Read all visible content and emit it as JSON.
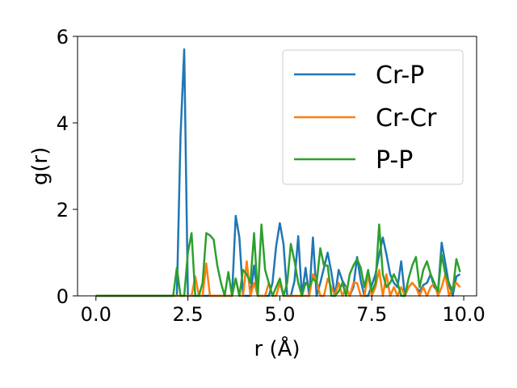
{
  "chart_data": {
    "type": "line",
    "xlabel": "r (Å)",
    "ylabel": "g(r)",
    "xlim": [
      -0.5,
      10.35
    ],
    "ylim": [
      0,
      6
    ],
    "xticks": [
      0.0,
      2.5,
      5.0,
      7.5,
      10.0
    ],
    "xtick_labels": [
      "0.0",
      "2.5",
      "5.0",
      "7.5",
      "10.0"
    ],
    "yticks": [
      0,
      2,
      4,
      6
    ],
    "ytick_labels": [
      "0",
      "2",
      "4",
      "6"
    ],
    "grid": false,
    "legend_position": "upper right",
    "series": [
      {
        "name": "Cr-P",
        "color": "#1f77b4",
        "points": [
          [
            0.0,
            0
          ],
          [
            2.2,
            0
          ],
          [
            2.3,
            3.7
          ],
          [
            2.4,
            5.7
          ],
          [
            2.5,
            0
          ],
          [
            2.6,
            0
          ],
          [
            2.7,
            0
          ],
          [
            2.8,
            0
          ],
          [
            2.9,
            0
          ],
          [
            3.0,
            0
          ],
          [
            3.1,
            0
          ],
          [
            3.2,
            0
          ],
          [
            3.3,
            0
          ],
          [
            3.4,
            0
          ],
          [
            3.5,
            0
          ],
          [
            3.6,
            0
          ],
          [
            3.7,
            0
          ],
          [
            3.8,
            1.85
          ],
          [
            3.9,
            1.35
          ],
          [
            4.0,
            0
          ],
          [
            4.1,
            0
          ],
          [
            4.2,
            0
          ],
          [
            4.3,
            0.7
          ],
          [
            4.4,
            0
          ],
          [
            4.5,
            0
          ],
          [
            4.6,
            0
          ],
          [
            4.7,
            0
          ],
          [
            4.8,
            0.3
          ],
          [
            4.9,
            1.15
          ],
          [
            5.0,
            1.68
          ],
          [
            5.1,
            1.2
          ],
          [
            5.2,
            0
          ],
          [
            5.3,
            0
          ],
          [
            5.4,
            0.35
          ],
          [
            5.5,
            1.38
          ],
          [
            5.6,
            0
          ],
          [
            5.7,
            0.65
          ],
          [
            5.8,
            0
          ],
          [
            5.9,
            1.35
          ],
          [
            6.0,
            0
          ],
          [
            6.1,
            0.3
          ],
          [
            6.2,
            0.65
          ],
          [
            6.3,
            1.0
          ],
          [
            6.4,
            0.55
          ],
          [
            6.5,
            0
          ],
          [
            6.6,
            0.6
          ],
          [
            6.7,
            0.35
          ],
          [
            6.8,
            0.2
          ],
          [
            6.9,
            0
          ],
          [
            7.0,
            0.2
          ],
          [
            7.1,
            0.9
          ],
          [
            7.2,
            0.35
          ],
          [
            7.3,
            0
          ],
          [
            7.4,
            0
          ],
          [
            7.5,
            0.25
          ],
          [
            7.6,
            0.5
          ],
          [
            7.7,
            0.95
          ],
          [
            7.8,
            1.35
          ],
          [
            7.9,
            0.95
          ],
          [
            8.0,
            0.5
          ],
          [
            8.1,
            0.3
          ],
          [
            8.2,
            0.2
          ],
          [
            8.3,
            0.8
          ],
          [
            8.4,
            0
          ],
          [
            8.5,
            0.2
          ],
          [
            8.6,
            0.3
          ],
          [
            8.7,
            0.2
          ],
          [
            8.8,
            0.1
          ],
          [
            8.9,
            0.25
          ],
          [
            9.0,
            0.3
          ],
          [
            9.1,
            0.5
          ],
          [
            9.2,
            0.2
          ],
          [
            9.3,
            0.1
          ],
          [
            9.4,
            1.23
          ],
          [
            9.5,
            0.75
          ],
          [
            9.6,
            0.25
          ],
          [
            9.7,
            0
          ],
          [
            9.8,
            0.45
          ],
          [
            9.9,
            0.5
          ]
        ]
      },
      {
        "name": "Cr-Cr",
        "color": "#ff7f0e",
        "points": [
          [
            0.0,
            0
          ],
          [
            2.6,
            0
          ],
          [
            2.7,
            0.45
          ],
          [
            2.8,
            0
          ],
          [
            2.9,
            0
          ],
          [
            3.0,
            0.75
          ],
          [
            3.1,
            0
          ],
          [
            3.2,
            0
          ],
          [
            3.3,
            0
          ],
          [
            3.4,
            0
          ],
          [
            3.5,
            0
          ],
          [
            3.6,
            0
          ],
          [
            3.7,
            0
          ],
          [
            3.8,
            0.4
          ],
          [
            3.9,
            0
          ],
          [
            4.0,
            0
          ],
          [
            4.1,
            0.8
          ],
          [
            4.2,
            0
          ],
          [
            4.3,
            0.3
          ],
          [
            4.4,
            0
          ],
          [
            4.5,
            0
          ],
          [
            4.6,
            0
          ],
          [
            4.7,
            0.3
          ],
          [
            4.8,
            0
          ],
          [
            4.9,
            0
          ],
          [
            5.0,
            0.3
          ],
          [
            5.1,
            0
          ],
          [
            5.2,
            0
          ],
          [
            5.3,
            0
          ],
          [
            5.4,
            0
          ],
          [
            5.5,
            0
          ],
          [
            5.6,
            0
          ],
          [
            5.7,
            0
          ],
          [
            5.8,
            0
          ],
          [
            5.9,
            0.5
          ],
          [
            6.0,
            0.35
          ],
          [
            6.1,
            0
          ],
          [
            6.2,
            0
          ],
          [
            6.3,
            0.4
          ],
          [
            6.4,
            0.2
          ],
          [
            6.5,
            0
          ],
          [
            6.6,
            0.3
          ],
          [
            6.7,
            0
          ],
          [
            6.8,
            0.2
          ],
          [
            6.9,
            0
          ],
          [
            7.0,
            0.3
          ],
          [
            7.1,
            0.3
          ],
          [
            7.2,
            0
          ],
          [
            7.3,
            0
          ],
          [
            7.4,
            0.5
          ],
          [
            7.5,
            0
          ],
          [
            7.6,
            0.2
          ],
          [
            7.7,
            0.6
          ],
          [
            7.8,
            0
          ],
          [
            7.9,
            0.5
          ],
          [
            8.0,
            0
          ],
          [
            8.1,
            0.2
          ],
          [
            8.2,
            0
          ],
          [
            8.3,
            0.2
          ],
          [
            8.4,
            0
          ],
          [
            8.5,
            0.2
          ],
          [
            8.6,
            0.3
          ],
          [
            8.7,
            0.2
          ],
          [
            8.8,
            0
          ],
          [
            8.9,
            0.2
          ],
          [
            9.0,
            0
          ],
          [
            9.1,
            0.2
          ],
          [
            9.2,
            0.3
          ],
          [
            9.3,
            0
          ],
          [
            9.4,
            0.2
          ],
          [
            9.5,
            0.5
          ],
          [
            9.6,
            0
          ],
          [
            9.7,
            0.2
          ],
          [
            9.8,
            0.3
          ],
          [
            9.9,
            0.2
          ]
        ]
      },
      {
        "name": "P-P",
        "color": "#2ca02c",
        "points": [
          [
            0.0,
            0
          ],
          [
            2.1,
            0
          ],
          [
            2.2,
            0.65
          ],
          [
            2.3,
            0
          ],
          [
            2.4,
            0
          ],
          [
            2.5,
            1.0
          ],
          [
            2.6,
            1.45
          ],
          [
            2.7,
            0
          ],
          [
            2.8,
            0
          ],
          [
            2.9,
            0.3
          ],
          [
            3.0,
            1.45
          ],
          [
            3.1,
            1.4
          ],
          [
            3.2,
            1.3
          ],
          [
            3.3,
            0.7
          ],
          [
            3.4,
            0.3
          ],
          [
            3.5,
            0
          ],
          [
            3.6,
            0.55
          ],
          [
            3.7,
            0
          ],
          [
            3.8,
            0.4
          ],
          [
            3.9,
            0
          ],
          [
            4.0,
            0.6
          ],
          [
            4.1,
            0.5
          ],
          [
            4.2,
            0.3
          ],
          [
            4.3,
            1.45
          ],
          [
            4.4,
            0
          ],
          [
            4.5,
            1.65
          ],
          [
            4.6,
            0.6
          ],
          [
            4.7,
            0.3
          ],
          [
            4.8,
            0
          ],
          [
            4.9,
            0.2
          ],
          [
            5.0,
            0.4
          ],
          [
            5.1,
            0
          ],
          [
            5.2,
            0.3
          ],
          [
            5.3,
            1.2
          ],
          [
            5.4,
            0.8
          ],
          [
            5.5,
            0.3
          ],
          [
            5.6,
            0
          ],
          [
            5.7,
            0.3
          ],
          [
            5.8,
            0.2
          ],
          [
            5.9,
            0.4
          ],
          [
            6.0,
            0.3
          ],
          [
            6.1,
            1.1
          ],
          [
            6.2,
            0.7
          ],
          [
            6.3,
            0.7
          ],
          [
            6.4,
            0
          ],
          [
            6.5,
            0
          ],
          [
            6.6,
            0.1
          ],
          [
            6.7,
            0.3
          ],
          [
            6.8,
            0
          ],
          [
            6.9,
            0.5
          ],
          [
            7.0,
            0.7
          ],
          [
            7.1,
            0.85
          ],
          [
            7.2,
            0.65
          ],
          [
            7.3,
            0.2
          ],
          [
            7.4,
            0.6
          ],
          [
            7.5,
            0.1
          ],
          [
            7.6,
            0.3
          ],
          [
            7.7,
            1.65
          ],
          [
            7.8,
            0.5
          ],
          [
            7.9,
            0.2
          ],
          [
            8.0,
            0.3
          ],
          [
            8.1,
            0.5
          ],
          [
            8.2,
            0.3
          ],
          [
            8.3,
            0
          ],
          [
            8.4,
            0
          ],
          [
            8.5,
            0.4
          ],
          [
            8.6,
            0.7
          ],
          [
            8.7,
            0.9
          ],
          [
            8.8,
            0.2
          ],
          [
            8.9,
            0.6
          ],
          [
            9.0,
            0.8
          ],
          [
            9.1,
            0.5
          ],
          [
            9.2,
            0.3
          ],
          [
            9.3,
            0.1
          ],
          [
            9.4,
            0.95
          ],
          [
            9.5,
            0.5
          ],
          [
            9.6,
            0.3
          ],
          [
            9.7,
            0.1
          ],
          [
            9.8,
            0.85
          ],
          [
            9.9,
            0.55
          ]
        ]
      }
    ]
  }
}
